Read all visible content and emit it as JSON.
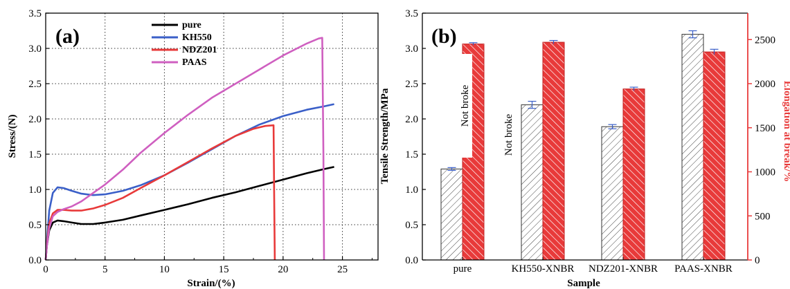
{
  "chart_data": [
    {
      "type": "line",
      "panel_label": "(a)",
      "xlabel": "Strain/(%)",
      "ylabel": "Stress/(N)",
      "xlim": [
        0,
        28
      ],
      "ylim": [
        0,
        3.5
      ],
      "xticks": [
        0,
        5,
        10,
        15,
        20,
        25
      ],
      "yticks": [
        0.0,
        0.5,
        1.0,
        1.5,
        2.0,
        2.5,
        3.0,
        3.5
      ],
      "grid": true,
      "legend_position": "top-center",
      "series": [
        {
          "name": "pure",
          "color": "#000000",
          "points": [
            [
              0,
              0
            ],
            [
              0.1,
              0.2
            ],
            [
              0.3,
              0.42
            ],
            [
              0.6,
              0.53
            ],
            [
              1.0,
              0.56
            ],
            [
              1.5,
              0.55
            ],
            [
              2.2,
              0.53
            ],
            [
              3.0,
              0.51
            ],
            [
              4.0,
              0.51
            ],
            [
              5.0,
              0.53
            ],
            [
              6.5,
              0.57
            ],
            [
              8.0,
              0.63
            ],
            [
              10.0,
              0.71
            ],
            [
              12.0,
              0.79
            ],
            [
              14.0,
              0.88
            ],
            [
              16.0,
              0.96
            ],
            [
              18.0,
              1.05
            ],
            [
              20.0,
              1.14
            ],
            [
              22.0,
              1.23
            ],
            [
              23.5,
              1.29
            ],
            [
              24.3,
              1.32
            ]
          ]
        },
        {
          "name": "KH550",
          "color": "#3a5fc8",
          "points": [
            [
              0,
              0
            ],
            [
              0.1,
              0.25
            ],
            [
              0.3,
              0.7
            ],
            [
              0.6,
              0.95
            ],
            [
              1.0,
              1.03
            ],
            [
              1.5,
              1.02
            ],
            [
              2.2,
              0.98
            ],
            [
              3.0,
              0.94
            ],
            [
              4.0,
              0.92
            ],
            [
              5.0,
              0.93
            ],
            [
              6.5,
              0.98
            ],
            [
              8.0,
              1.06
            ],
            [
              10.0,
              1.2
            ],
            [
              12.0,
              1.38
            ],
            [
              14.0,
              1.57
            ],
            [
              16.0,
              1.76
            ],
            [
              18.0,
              1.92
            ],
            [
              20.0,
              2.04
            ],
            [
              22.0,
              2.13
            ],
            [
              23.5,
              2.18
            ],
            [
              24.3,
              2.21
            ]
          ]
        },
        {
          "name": "NDZ201",
          "color": "#e83a3a",
          "points": [
            [
              0,
              0
            ],
            [
              0.1,
              0.22
            ],
            [
              0.3,
              0.52
            ],
            [
              0.6,
              0.66
            ],
            [
              1.0,
              0.71
            ],
            [
              1.5,
              0.71
            ],
            [
              2.2,
              0.7
            ],
            [
              3.0,
              0.7
            ],
            [
              4.0,
              0.73
            ],
            [
              5.0,
              0.78
            ],
            [
              6.5,
              0.88
            ],
            [
              8.0,
              1.02
            ],
            [
              10.0,
              1.2
            ],
            [
              12.0,
              1.39
            ],
            [
              14.0,
              1.58
            ],
            [
              16.0,
              1.76
            ],
            [
              17.5,
              1.86
            ],
            [
              18.5,
              1.9
            ],
            [
              19.2,
              1.91
            ],
            [
              19.25,
              0.9
            ],
            [
              19.3,
              0.0
            ]
          ]
        },
        {
          "name": "PAAS",
          "color": "#cf5fc0",
          "points": [
            [
              0,
              0
            ],
            [
              0.1,
              0.2
            ],
            [
              0.3,
              0.45
            ],
            [
              0.6,
              0.62
            ],
            [
              1.0,
              0.68
            ],
            [
              1.5,
              0.72
            ],
            [
              2.2,
              0.76
            ],
            [
              3.0,
              0.83
            ],
            [
              4.0,
              0.95
            ],
            [
              5.0,
              1.07
            ],
            [
              6.5,
              1.28
            ],
            [
              8.0,
              1.52
            ],
            [
              10.0,
              1.8
            ],
            [
              12.0,
              2.06
            ],
            [
              14.0,
              2.3
            ],
            [
              16.0,
              2.5
            ],
            [
              18.0,
              2.7
            ],
            [
              20.0,
              2.9
            ],
            [
              22.0,
              3.07
            ],
            [
              23.0,
              3.14
            ],
            [
              23.3,
              3.15
            ],
            [
              23.4,
              1.5
            ],
            [
              23.45,
              0.0
            ]
          ]
        }
      ]
    },
    {
      "type": "bar",
      "panel_label": "(b)",
      "xlabel": "Sample",
      "ylabel": "Tensile Strength/MPa",
      "y2label": "Elongation at break/%",
      "categories": [
        "pure",
        "KH550-XNBR",
        "NDZ201-XNBR",
        "PAAS-XNBR"
      ],
      "ylim": [
        0,
        3.5
      ],
      "y2lim": [
        0,
        2800
      ],
      "yticks": [
        0.0,
        0.5,
        1.0,
        1.5,
        2.0,
        2.5,
        3.0,
        3.5
      ],
      "y2ticks": [
        0,
        500,
        1000,
        1500,
        2000,
        2500
      ],
      "series": [
        {
          "name": "Tensile Strength",
          "axis": "left",
          "color": "#555555",
          "values": [
            1.29,
            2.2,
            1.89,
            3.2
          ],
          "errors": [
            0.02,
            0.05,
            0.03,
            0.05
          ]
        },
        {
          "name": "Elongation at break",
          "axis": "right",
          "color": "#e83a3a",
          "values": [
            2450,
            2470,
            1940,
            2360
          ],
          "errors": [
            15,
            20,
            20,
            30
          ]
        }
      ],
      "annotations": [
        {
          "text": "Not broke",
          "category_index": 0
        },
        {
          "text": "Not broke",
          "category_index": 1
        }
      ],
      "axis_accent_color": "#e83a3a"
    }
  ]
}
